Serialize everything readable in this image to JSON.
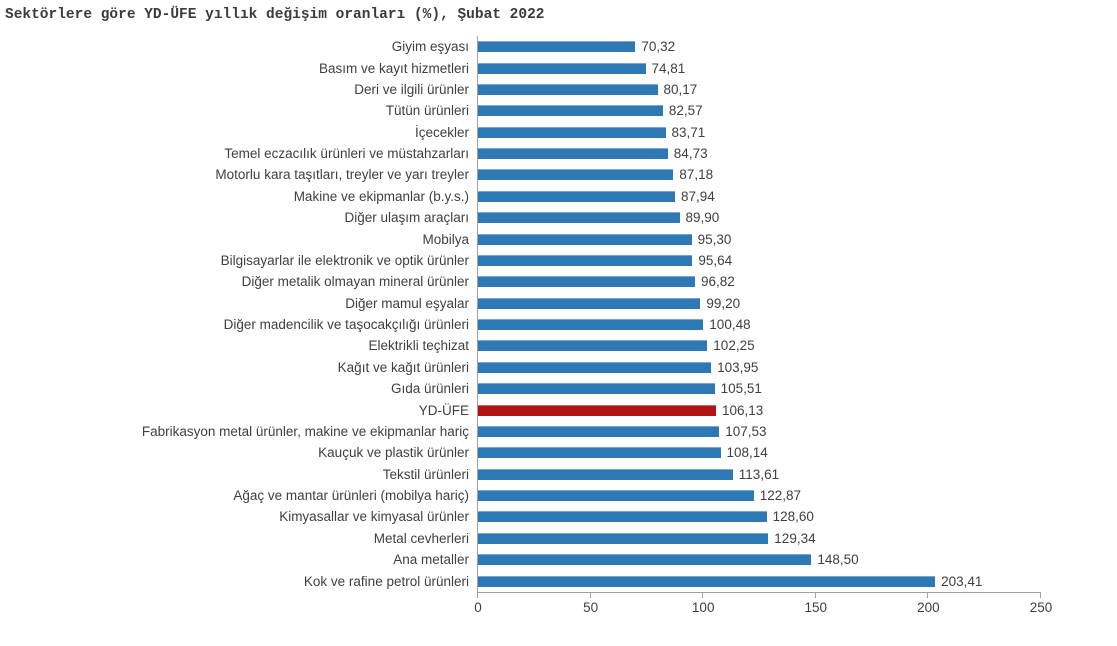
{
  "chart_data": {
    "type": "bar",
    "orientation": "horizontal",
    "title": "Sektörlere göre YD-ÜFE yıllık değişim oranları (%), Şubat 2022",
    "categories": [
      "Giyim eşyası",
      "Basım ve kayıt hizmetleri",
      "Deri ve ilgili ürünler",
      "Tütün ürünleri",
      "İçecekler",
      "Temel eczacılık ürünleri ve müstahzarları",
      "Motorlu kara taşıtları, treyler ve yarı treyler",
      "Makine ve ekipmanlar (b.y.s.)",
      "Diğer ulaşım araçları",
      "Mobilya",
      "Bilgisayarlar ile elektronik ve optik ürünler",
      "Diğer metalik olmayan mineral ürünler",
      "Diğer mamul eşyalar",
      "Diğer madencilik ve taşocakçılığı ürünleri",
      "Elektrikli teçhizat",
      "Kağıt ve kağıt ürünleri",
      "Gıda ürünleri",
      "YD-ÜFE",
      "Fabrikasyon metal ürünler, makine ve ekipmanlar hariç",
      "Kauçuk ve plastik ürünler",
      "Tekstil ürünleri",
      "Ağaç ve mantar ürünleri (mobilya hariç)",
      "Kimyasallar ve kimyasal ürünler",
      "Metal cevherleri",
      "Ana metaller",
      "Kok ve rafine petrol ürünleri"
    ],
    "values": [
      70.32,
      74.81,
      80.17,
      82.57,
      83.71,
      84.73,
      87.18,
      87.94,
      89.9,
      95.3,
      95.64,
      96.82,
      99.2,
      100.48,
      102.25,
      103.95,
      105.51,
      106.13,
      107.53,
      108.14,
      113.61,
      122.87,
      128.6,
      129.34,
      148.5,
      203.41
    ],
    "value_labels": [
      "70,32",
      "74,81",
      "80,17",
      "82,57",
      "83,71",
      "84,73",
      "87,18",
      "87,94",
      "89,90",
      "95,30",
      "95,64",
      "96,82",
      "99,20",
      "100,48",
      "102,25",
      "103,95",
      "105,51",
      "106,13",
      "107,53",
      "108,14",
      "113,61",
      "122,87",
      "128,60",
      "129,34",
      "148,50",
      "203,41"
    ],
    "highlight_index": 17,
    "highlight_category": "YD-ÜFE",
    "x_ticks": [
      0,
      50,
      100,
      150,
      200,
      250
    ],
    "xlim": [
      0,
      250
    ],
    "grid": false,
    "legend_position": "none",
    "colors": {
      "bar": "#2e78b5",
      "highlight": "#b01411",
      "axis": "#a0a0a0",
      "text": "#3f3f3f",
      "title": "#3b3b3b",
      "background": "#ffffff"
    }
  }
}
